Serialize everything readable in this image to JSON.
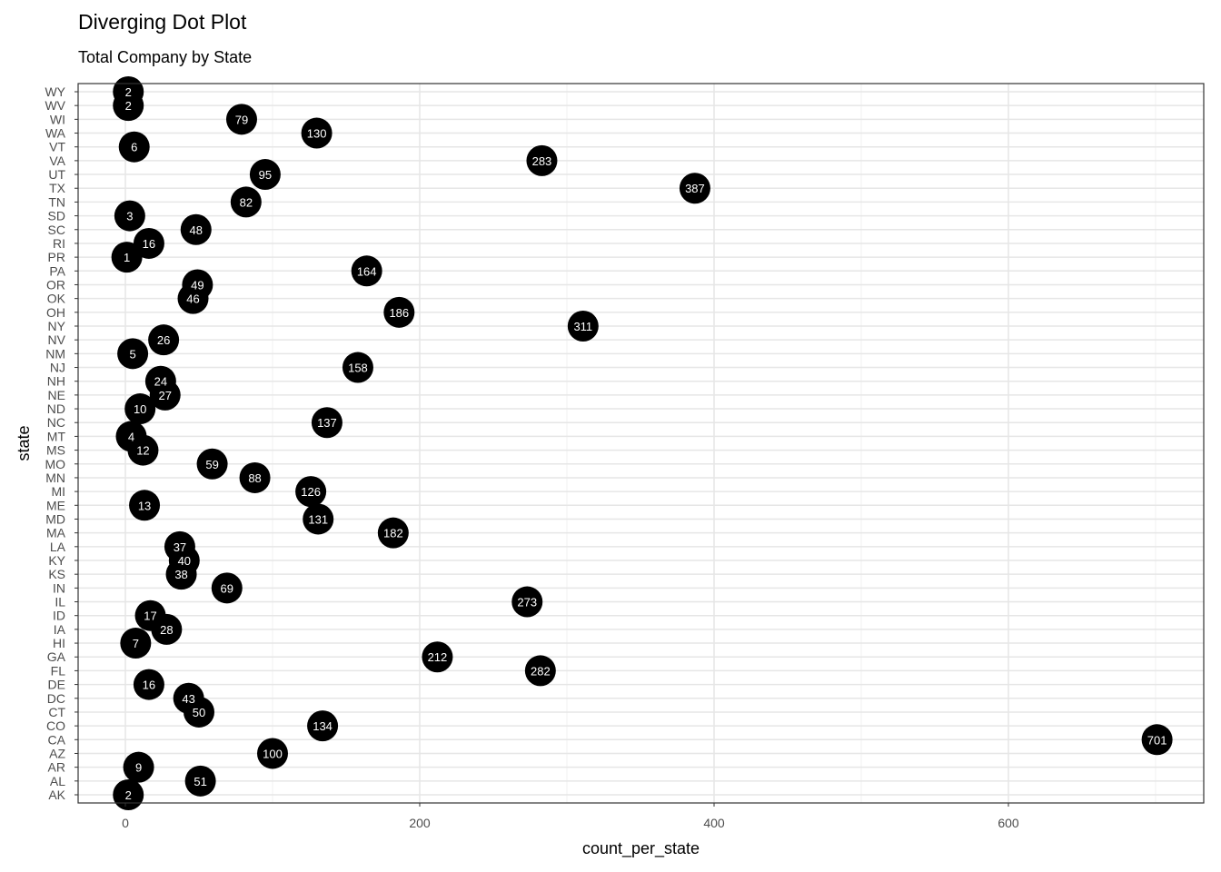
{
  "title": "Diverging Dot Plot",
  "subtitle": "Total Company by State",
  "chart_data": {
    "type": "scatter",
    "title": "Diverging Dot Plot",
    "subtitle": "Total Company by State",
    "xlabel": "count_per_state",
    "ylabel": "state",
    "xlim": [
      -34,
      734
    ],
    "xticks": [
      0,
      200,
      400,
      600
    ],
    "grid": true,
    "legend": "none",
    "point_color": "#000000",
    "label_color": "#ffffff",
    "categories": [
      "AK",
      "AL",
      "AR",
      "AZ",
      "CA",
      "CO",
      "CT",
      "DC",
      "DE",
      "FL",
      "GA",
      "HI",
      "IA",
      "ID",
      "IL",
      "IN",
      "KS",
      "KY",
      "LA",
      "MA",
      "MD",
      "ME",
      "MI",
      "MN",
      "MO",
      "MS",
      "MT",
      "NC",
      "ND",
      "NE",
      "NH",
      "NJ",
      "NM",
      "NV",
      "NY",
      "OH",
      "OK",
      "OR",
      "PA",
      "PR",
      "RI",
      "SC",
      "SD",
      "TN",
      "TX",
      "UT",
      "VA",
      "VT",
      "WA",
      "WI",
      "WV",
      "WY"
    ],
    "values": [
      2,
      51,
      9,
      100,
      701,
      134,
      50,
      43,
      16,
      282,
      212,
      7,
      28,
      17,
      273,
      69,
      38,
      40,
      37,
      182,
      131,
      13,
      126,
      88,
      59,
      12,
      4,
      137,
      10,
      27,
      24,
      158,
      5,
      26,
      311,
      186,
      46,
      49,
      164,
      1,
      16,
      48,
      3,
      82,
      387,
      95,
      283,
      6,
      130,
      79,
      2,
      2
    ]
  }
}
